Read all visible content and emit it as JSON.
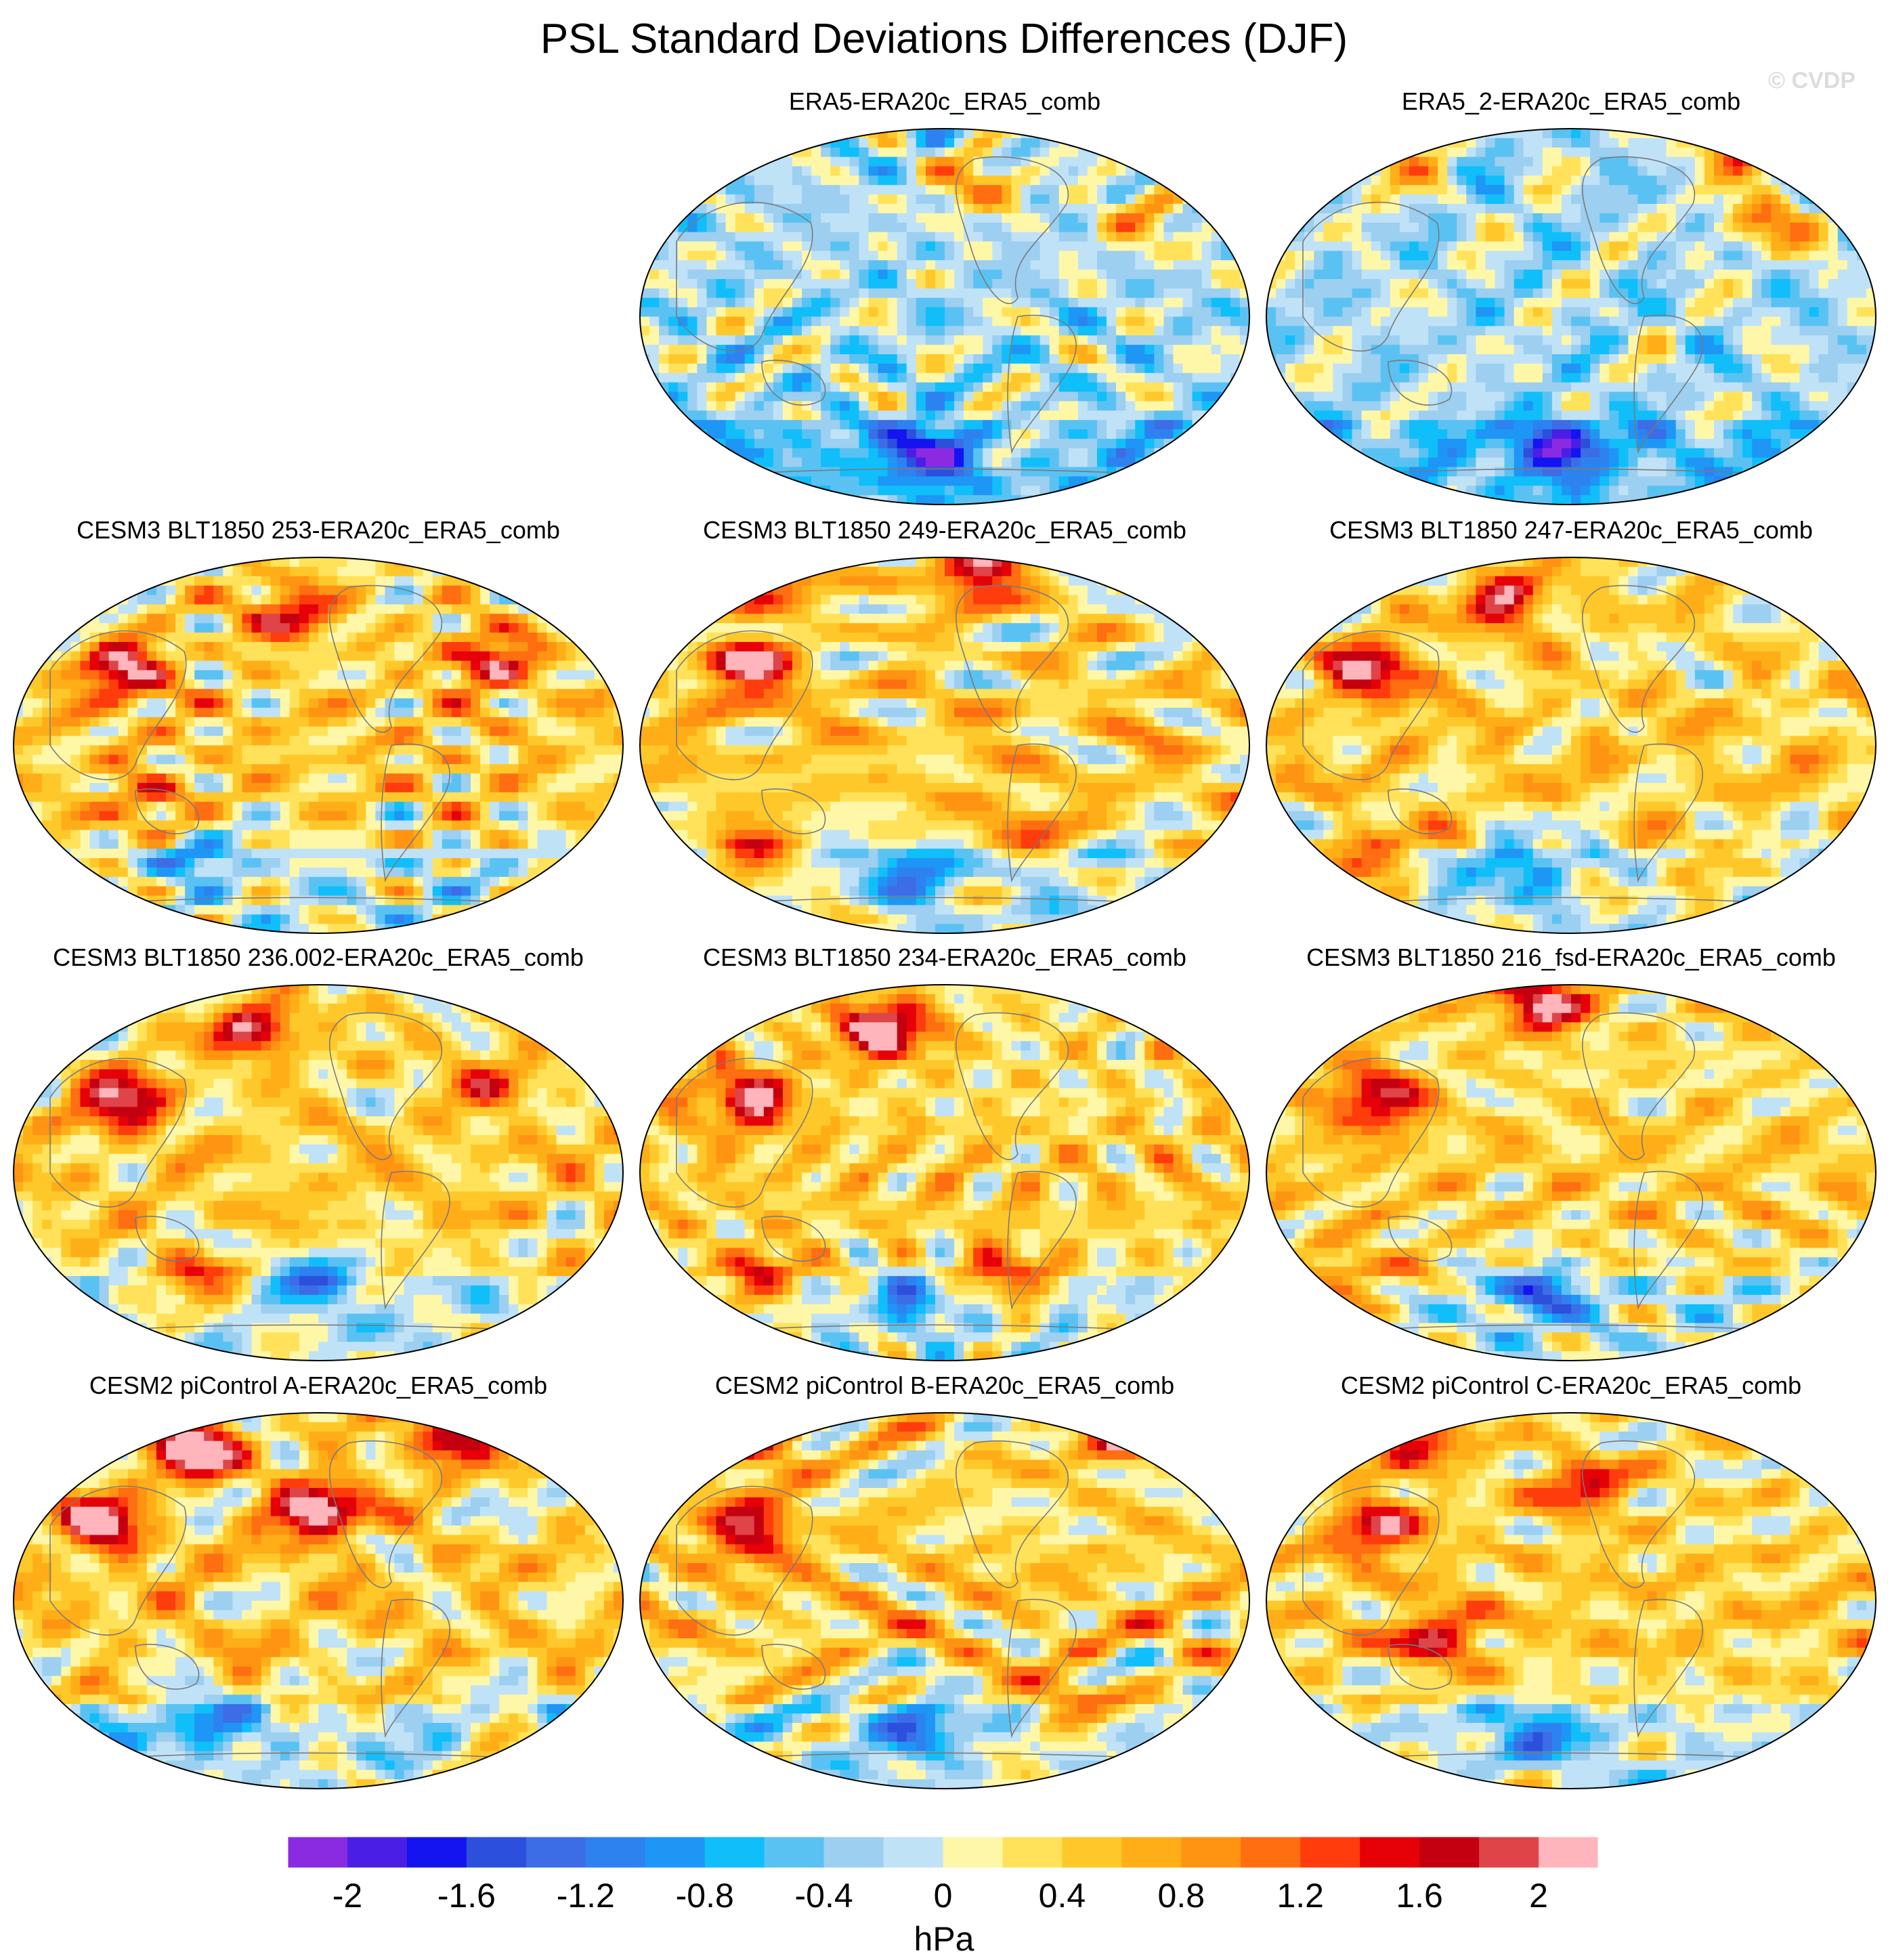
{
  "chart_data": {
    "type": "map-panels",
    "title": "PSL Standard Deviations Differences (DJF)",
    "credit": "© CVDP",
    "units": "hPa",
    "colorbar": {
      "levels": [
        -2.2,
        -2,
        -1.8,
        -1.6,
        -1.4,
        -1.2,
        -1,
        -0.8,
        -0.6,
        -0.4,
        -0.2,
        0,
        0.2,
        0.4,
        0.6,
        0.8,
        1,
        1.2,
        1.4,
        1.6,
        1.8,
        2,
        2.2
      ],
      "colors": [
        "#8a2be2",
        "#4b1ee6",
        "#1414f0",
        "#2c4fdc",
        "#3c6ce6",
        "#2d82f0",
        "#1e96f5",
        "#10befa",
        "#5ac2f2",
        "#9ccff0",
        "#c0e2f7",
        "#fff7a8",
        "#ffe25a",
        "#ffc82a",
        "#ffae18",
        "#ff9412",
        "#ff6e10",
        "#ff3c0c",
        "#e60008",
        "#c40010",
        "#de4448",
        "#ffb5bb"
      ],
      "tick_values": [
        -2,
        -1.6,
        -1.2,
        -0.8,
        -0.4,
        0,
        0.4,
        0.8,
        1.2,
        1.6,
        2
      ],
      "tick_labels": [
        "-2",
        "-1.6",
        "-1.2",
        "-0.8",
        "-0.4",
        "0",
        "0.4",
        "0.8",
        "1.2",
        "1.6",
        "2"
      ]
    },
    "panels": [
      {
        "label": "ERA5-ERA20c_ERA5_comb",
        "pattern": "obs_weak_negative",
        "features": [
          [
            0.55,
            0.15,
            1.1
          ],
          [
            0.82,
            0.25,
            0.9
          ],
          [
            0.48,
            0.86,
            -1.6
          ],
          [
            0.6,
            0.83,
            0.6
          ]
        ]
      },
      {
        "label": "ERA5_2-ERA20c_ERA5_comb",
        "pattern": "obs_weak_negative",
        "features": [
          [
            0.78,
            0.05,
            1.5
          ],
          [
            0.82,
            0.25,
            1.2
          ],
          [
            0.48,
            0.84,
            -1.4
          ],
          [
            0.2,
            0.1,
            0.9
          ]
        ]
      },
      {
        "label": "CESM3 BLT1850 253-ERA20c_ERA5_comb",
        "pattern": "model_positive",
        "features": [
          [
            0.45,
            0.15,
            1.4
          ],
          [
            0.78,
            0.27,
            1.5
          ],
          [
            0.18,
            0.3,
            1.8
          ],
          [
            0.22,
            0.68,
            0.9
          ],
          [
            0.3,
            0.77,
            -0.9
          ]
        ]
      },
      {
        "label": "CESM3 BLT1850 249-ERA20c_ERA5_comb",
        "pattern": "model_positive",
        "features": [
          [
            0.2,
            0.06,
            1.4
          ],
          [
            0.55,
            0.05,
            1.6
          ],
          [
            0.18,
            0.3,
            1.8
          ],
          [
            0.18,
            0.8,
            1.2
          ],
          [
            0.45,
            0.82,
            -1.2
          ],
          [
            0.6,
            0.72,
            0.9
          ]
        ]
      },
      {
        "label": "CESM3 BLT1850 247-ERA20c_ERA5_comb",
        "pattern": "model_positive",
        "features": [
          [
            0.4,
            0.12,
            1.5
          ],
          [
            0.18,
            0.3,
            1.8
          ],
          [
            0.18,
            0.8,
            1.2
          ],
          [
            0.42,
            0.82,
            -1.0
          ],
          [
            0.7,
            0.86,
            0.8
          ]
        ]
      },
      {
        "label": "CESM3 BLT1850 236.002-ERA20c_ERA5_comb",
        "pattern": "model_positive",
        "features": [
          [
            0.4,
            0.12,
            1.6
          ],
          [
            0.18,
            0.3,
            1.8
          ],
          [
            0.78,
            0.25,
            1.0
          ],
          [
            0.5,
            0.78,
            -1.1
          ],
          [
            0.3,
            0.8,
            1.0
          ]
        ]
      },
      {
        "label": "CESM3 BLT1850 234-ERA20c_ERA5_comb",
        "pattern": "model_positive",
        "features": [
          [
            0.4,
            0.12,
            2.2
          ],
          [
            0.18,
            0.3,
            1.8
          ],
          [
            0.2,
            0.78,
            1.3
          ],
          [
            0.6,
            0.78,
            1.3
          ],
          [
            0.45,
            0.83,
            -0.9
          ]
        ]
      },
      {
        "label": "CESM3 BLT1850 216_fsd-ERA20c_ERA5_comb",
        "pattern": "model_positive",
        "features": [
          [
            0.45,
            0.05,
            1.9
          ],
          [
            0.18,
            0.3,
            1.8
          ],
          [
            0.15,
            0.78,
            1.0
          ],
          [
            0.45,
            0.82,
            -1.3
          ]
        ]
      },
      {
        "label": "CESM2 piControl A-ERA20c_ERA5_comb",
        "pattern": "model_positive",
        "features": [
          [
            0.3,
            0.1,
            2.1
          ],
          [
            0.5,
            0.26,
            2.3
          ],
          [
            0.15,
            0.3,
            1.8
          ],
          [
            0.7,
            0.08,
            1.5
          ],
          [
            0.3,
            0.84,
            -1.2
          ]
        ]
      },
      {
        "label": "CESM2 piControl B-ERA20c_ERA5_comb",
        "pattern": "model_positive",
        "features": [
          [
            0.2,
            0.05,
            1.4
          ],
          [
            0.8,
            0.06,
            1.8
          ],
          [
            0.18,
            0.3,
            1.8
          ],
          [
            0.45,
            0.83,
            -1.3
          ],
          [
            0.7,
            0.78,
            0.9
          ]
        ]
      },
      {
        "label": "CESM2 piControl C-ERA20c_ERA5_comb",
        "pattern": "model_positive",
        "features": [
          [
            0.25,
            0.08,
            1.2
          ],
          [
            0.52,
            0.2,
            1.3
          ],
          [
            0.18,
            0.3,
            1.6
          ],
          [
            0.28,
            0.6,
            1.3
          ],
          [
            0.45,
            0.85,
            -1.1
          ]
        ]
      }
    ]
  }
}
